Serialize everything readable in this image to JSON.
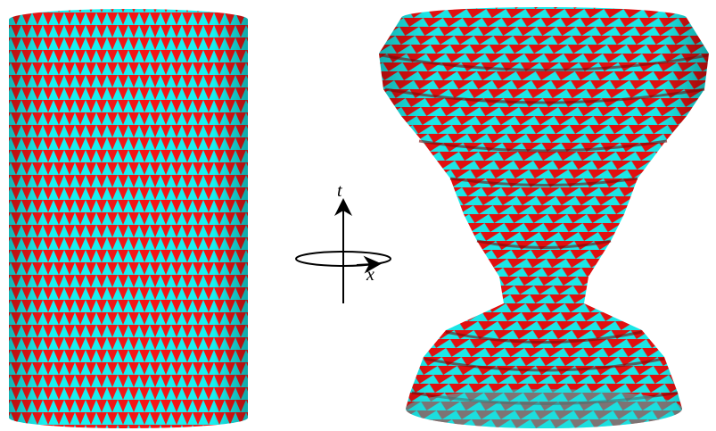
{
  "axis_labels": {
    "vertical": "t",
    "horizontal": "x"
  }
}
